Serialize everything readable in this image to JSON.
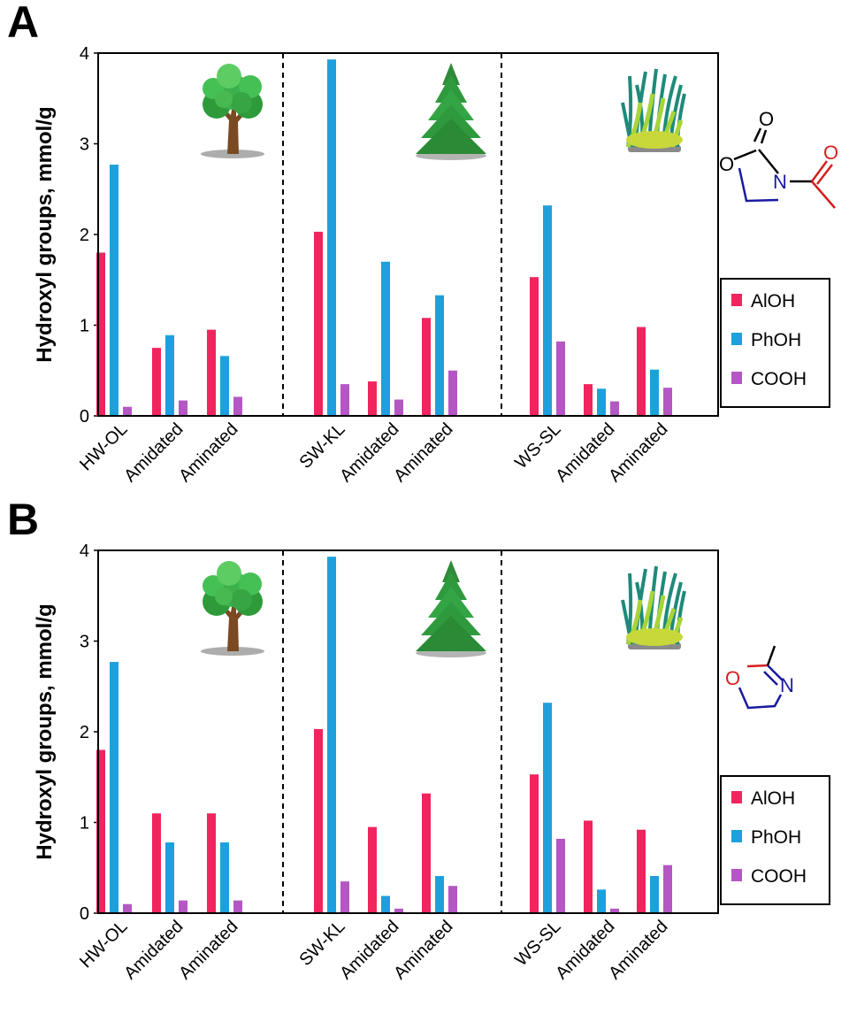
{
  "chart_data": [
    {
      "type": "bar",
      "panel_label": "A",
      "ylabel": "Hydroxyl groups, mmol/g",
      "ylim": [
        0,
        4
      ],
      "yticks": [
        "0",
        "1",
        "2",
        "3",
        "4"
      ],
      "groups": [
        "HW-OL",
        "SW-KL",
        "WS-SL"
      ],
      "categories": [
        "HW-OL",
        "Amidated",
        "Aminated",
        "SW-KL",
        "Amidated",
        "Aminated",
        "WS-SL",
        "Amidated",
        "Aminated"
      ],
      "series": [
        {
          "name": "AlOH",
          "color": "#f0245e",
          "values": [
            1.8,
            0.75,
            0.95,
            2.03,
            0.38,
            1.08,
            1.53,
            0.35,
            0.98
          ]
        },
        {
          "name": "PhOH",
          "color": "#1ea0dc",
          "values": [
            2.77,
            0.89,
            0.66,
            3.93,
            1.7,
            1.33,
            2.32,
            0.3,
            0.51
          ]
        },
        {
          "name": "COOH",
          "color": "#b457c4",
          "values": [
            0.1,
            0.17,
            0.21,
            0.35,
            0.18,
            0.5,
            0.82,
            0.16,
            0.31
          ]
        }
      ],
      "separators": "dashed",
      "legend": "right",
      "molecule": "n-acetyl-oxazolidinone",
      "molecule_atoms": {
        "o1": "O",
        "o2": "O",
        "o3": "O",
        "n": "N"
      }
    },
    {
      "type": "bar",
      "panel_label": "B",
      "ylabel": "Hydroxyl groups, mmol/g",
      "ylim": [
        0,
        4
      ],
      "yticks": [
        "0",
        "1",
        "2",
        "3",
        "4"
      ],
      "groups": [
        "HW-OL",
        "SW-KL",
        "WS-SL"
      ],
      "categories": [
        "HW-OL",
        "Amidated",
        "Aminated",
        "SW-KL",
        "Amidated",
        "Aminated",
        "WS-SL",
        "Amidated",
        "Aminated"
      ],
      "series": [
        {
          "name": "AlOH",
          "color": "#f0245e",
          "values": [
            1.8,
            1.1,
            1.1,
            2.03,
            0.95,
            1.32,
            1.53,
            1.02,
            0.92
          ]
        },
        {
          "name": "PhOH",
          "color": "#1ea0dc",
          "values": [
            2.77,
            0.78,
            0.78,
            3.93,
            0.19,
            0.41,
            2.32,
            0.26,
            0.41
          ]
        },
        {
          "name": "COOH",
          "color": "#b457c4",
          "values": [
            0.1,
            0.14,
            0.14,
            0.35,
            0.05,
            0.3,
            0.82,
            0.05,
            0.53
          ]
        }
      ],
      "separators": "dashed",
      "legend": "right",
      "molecule": "methyl-oxazoline",
      "molecule_atoms": {
        "o": "O",
        "n": "N"
      }
    }
  ],
  "icons": [
    "deciduous-tree-icon",
    "conifer-tree-icon",
    "wheat-straw-grass-icon"
  ]
}
